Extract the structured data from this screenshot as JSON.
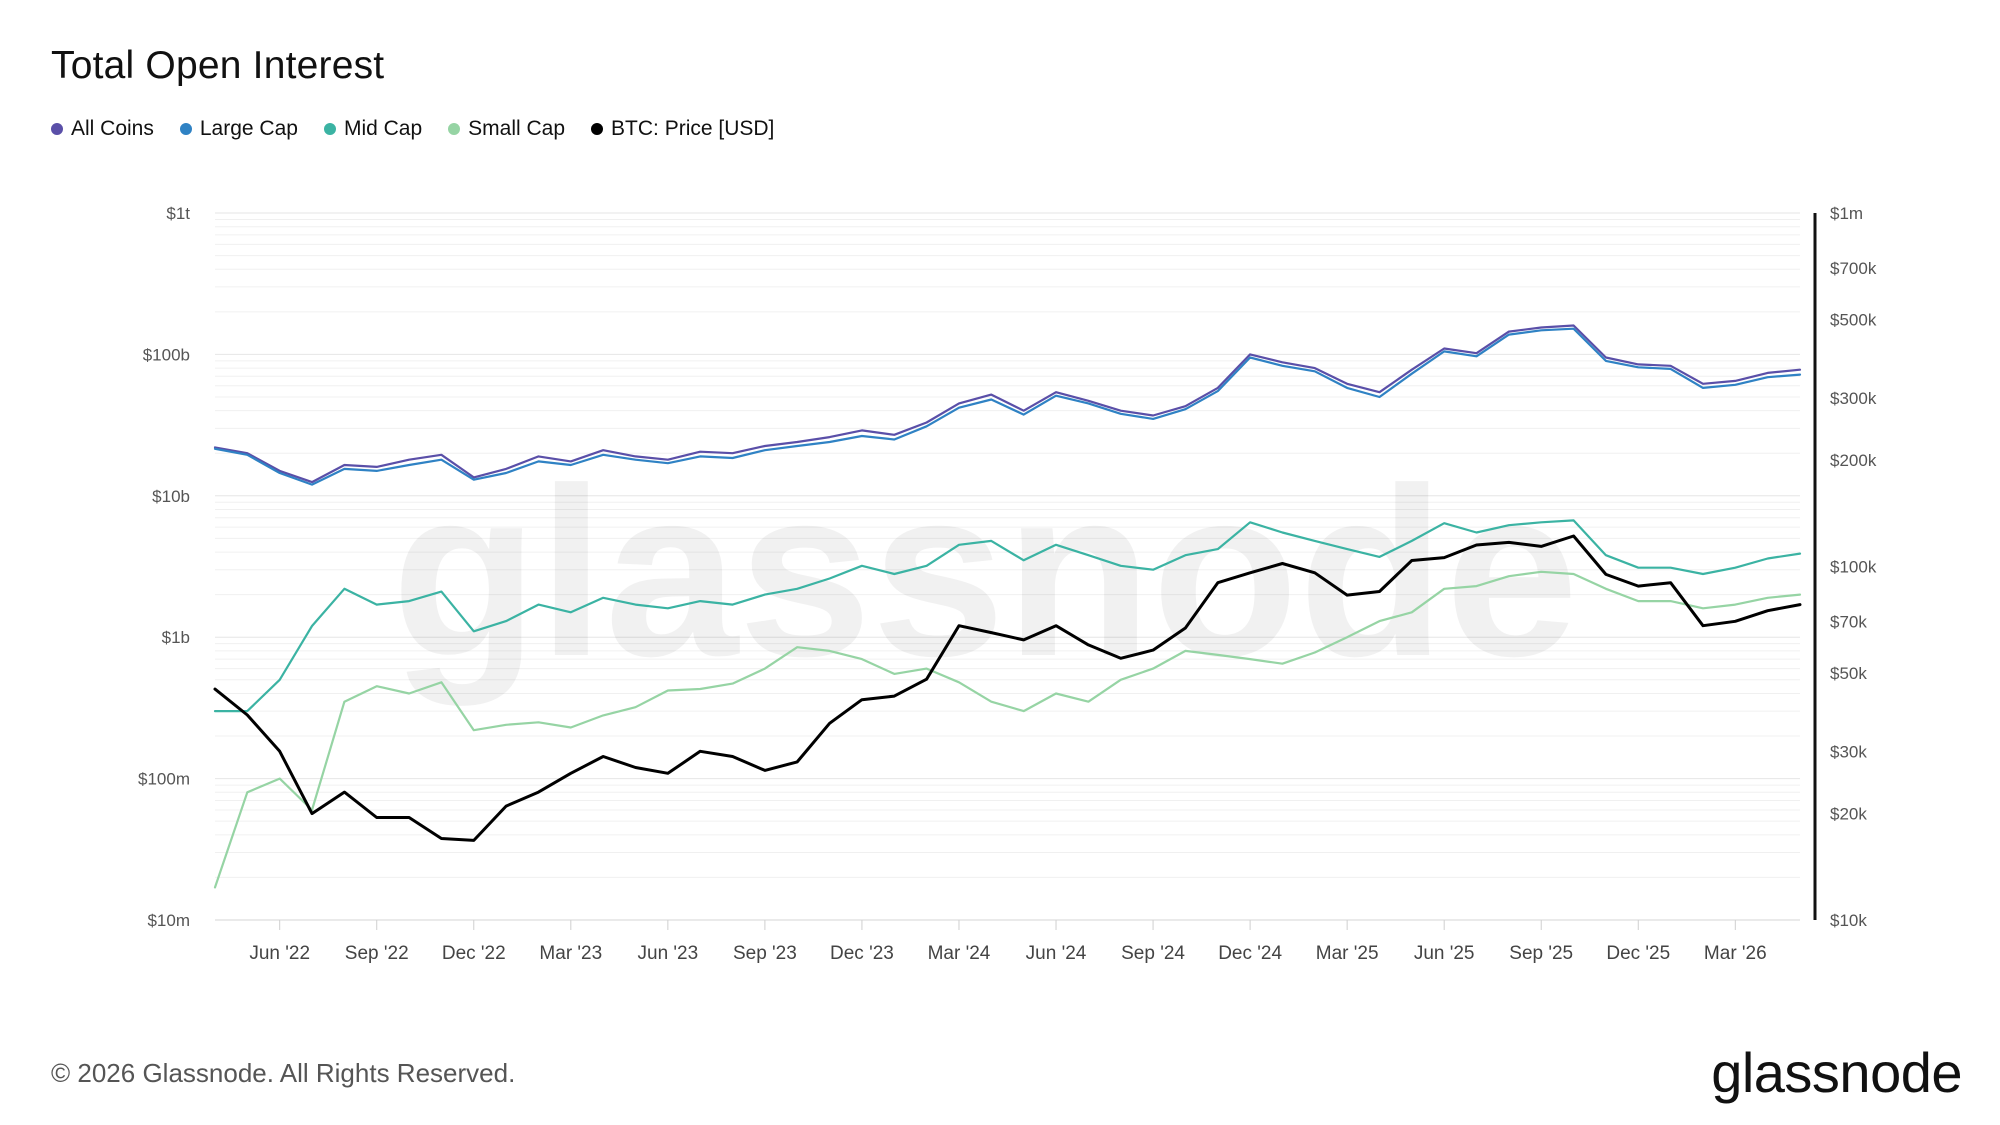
{
  "header": {
    "title": "Total Open Interest"
  },
  "legend": {
    "items": [
      {
        "label": "All Coins",
        "color": "#5a4fa8"
      },
      {
        "label": "Large Cap",
        "color": "#2f82c4"
      },
      {
        "label": "Mid Cap",
        "color": "#3bb3a3"
      },
      {
        "label": "Small Cap",
        "color": "#96d4a4"
      },
      {
        "label": "BTC: Price [USD]",
        "color": "#000000"
      }
    ]
  },
  "watermark": "glassnode",
  "footer": {
    "copyright": "© 2026 Glassnode. All Rights Reserved.",
    "brand": "glassnode"
  },
  "chart_data": {
    "type": "line",
    "title": "Total Open Interest",
    "x_ticks": [
      "Jun '22",
      "Sep '22",
      "Dec '22",
      "Mar '23",
      "Jun '23",
      "Sep '23",
      "Dec '23",
      "Mar '24",
      "Jun '24",
      "Sep '24",
      "Dec '24",
      "Mar '25",
      "Jun '25",
      "Sep '25",
      "Dec '25",
      "Mar '26"
    ],
    "x_range": [
      "2022-04",
      "2026-05"
    ],
    "y_left": {
      "scale": "log",
      "range": [
        10000000,
        1000000000000
      ],
      "tick_labels": [
        "$10m",
        "$100m",
        "$1b",
        "$10b",
        "$100b",
        "$1t"
      ]
    },
    "y_right": {
      "scale": "log",
      "range": [
        10000,
        1000000
      ],
      "tick_labels": [
        "$10k",
        "$20k",
        "$30k",
        "$50k",
        "$70k",
        "$100k",
        "$200k",
        "$300k",
        "$500k",
        "$700k",
        "$1m"
      ]
    },
    "grid": true,
    "legend_position": "top-left",
    "x": [
      "2022-04",
      "2022-05",
      "2022-06",
      "2022-07",
      "2022-08",
      "2022-09",
      "2022-10",
      "2022-11",
      "2022-12",
      "2023-01",
      "2023-02",
      "2023-03",
      "2023-04",
      "2023-05",
      "2023-06",
      "2023-07",
      "2023-08",
      "2023-09",
      "2023-10",
      "2023-11",
      "2023-12",
      "2024-01",
      "2024-02",
      "2024-03",
      "2024-04",
      "2024-05",
      "2024-06",
      "2024-07",
      "2024-08",
      "2024-09",
      "2024-10",
      "2024-11",
      "2024-12",
      "2025-01",
      "2025-02",
      "2025-03",
      "2025-04",
      "2025-05",
      "2025-06",
      "2025-07",
      "2025-08",
      "2025-09",
      "2025-10",
      "2025-11",
      "2025-12",
      "2026-01",
      "2026-02",
      "2026-03",
      "2026-04",
      "2026-05"
    ],
    "series": [
      {
        "name": "All Coins",
        "axis": "left",
        "values": [
          22000000000,
          20000000000,
          15000000000,
          12500000000,
          16500000000,
          16000000000,
          18000000000,
          19500000000,
          13500000000,
          15500000000,
          19000000000,
          17500000000,
          21000000000,
          19000000000,
          18000000000,
          20500000000,
          20000000000,
          22500000000,
          24000000000,
          26000000000,
          29000000000,
          27000000000,
          33000000000,
          45000000000,
          52000000000,
          40000000000,
          54000000000,
          47000000000,
          40000000000,
          37000000000,
          43000000000,
          58000000000,
          100000000000,
          88000000000,
          80000000000,
          62000000000,
          54000000000,
          78000000000,
          110000000000,
          102000000000,
          145000000000,
          155000000000,
          160000000000,
          95000000000,
          85000000000,
          83000000000,
          62000000000,
          65000000000,
          74000000000,
          78000000000
        ]
      },
      {
        "name": "Large Cap",
        "axis": "left",
        "values": [
          21500000000,
          19500000000,
          14500000000,
          12000000000,
          15500000000,
          15000000000,
          16500000000,
          18000000000,
          13000000000,
          14500000000,
          17500000000,
          16500000000,
          19500000000,
          18000000000,
          17000000000,
          19000000000,
          18500000000,
          21000000000,
          22500000000,
          24000000000,
          26500000000,
          25000000000,
          31000000000,
          42000000000,
          48000000000,
          37500000000,
          51000000000,
          45000000000,
          38000000000,
          35000000000,
          41000000000,
          55000000000,
          95000000000,
          83000000000,
          76000000000,
          58000000000,
          50000000000,
          73000000000,
          105000000000,
          97000000000,
          138000000000,
          148000000000,
          152000000000,
          90000000000,
          81000000000,
          79000000000,
          58000000000,
          61000000000,
          69000000000,
          72000000000
        ]
      },
      {
        "name": "Mid Cap",
        "axis": "left",
        "values": [
          300000000,
          300000000,
          500000000,
          1200000000,
          2200000000,
          1700000000,
          1800000000,
          2100000000,
          1100000000,
          1300000000,
          1700000000,
          1500000000,
          1900000000,
          1700000000,
          1600000000,
          1800000000,
          1700000000,
          2000000000,
          2200000000,
          2600000000,
          3200000000,
          2800000000,
          3200000000,
          4500000000,
          4800000000,
          3500000000,
          4500000000,
          3800000000,
          3200000000,
          3000000000,
          3800000000,
          4200000000,
          6500000000,
          5500000000,
          4800000000,
          4200000000,
          3700000000,
          4800000000,
          6400000000,
          5500000000,
          6200000000,
          6500000000,
          6700000000,
          3800000000,
          3100000000,
          3100000000,
          2800000000,
          3100000000,
          3600000000,
          3900000000
        ]
      },
      {
        "name": "Small Cap",
        "axis": "left",
        "values": [
          17000000,
          80000000,
          100000000,
          60000000,
          350000000,
          450000000,
          400000000,
          480000000,
          220000000,
          240000000,
          250000000,
          230000000,
          280000000,
          320000000,
          420000000,
          430000000,
          470000000,
          600000000,
          850000000,
          800000000,
          700000000,
          550000000,
          600000000,
          480000000,
          350000000,
          300000000,
          400000000,
          350000000,
          500000000,
          600000000,
          800000000,
          750000000,
          700000000,
          650000000,
          780000000,
          1000000000,
          1300000000,
          1500000000,
          2200000000,
          2300000000,
          2700000000,
          2900000000,
          2800000000,
          2200000000,
          1800000000,
          1800000000,
          1600000000,
          1700000000,
          1900000000,
          2000000000
        ]
      },
      {
        "name": "BTC: Price [USD]",
        "axis": "right",
        "values": [
          45000,
          38000,
          30000,
          20000,
          23000,
          19500,
          19500,
          17000,
          16800,
          21000,
          23000,
          26000,
          29000,
          27000,
          26000,
          30000,
          29000,
          26500,
          28000,
          36000,
          42000,
          43000,
          48000,
          68000,
          65000,
          62000,
          68000,
          60000,
          55000,
          58000,
          67000,
          90000,
          96000,
          102000,
          96000,
          83000,
          85000,
          104000,
          106000,
          115000,
          117000,
          114000,
          122000,
          95000,
          88000,
          90000,
          68000,
          70000,
          75000,
          78000
        ]
      }
    ]
  }
}
